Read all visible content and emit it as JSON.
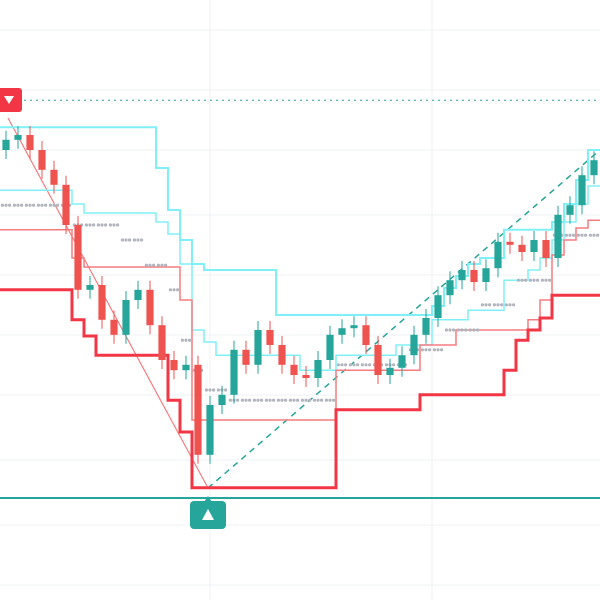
{
  "chart_data": {
    "type": "candlestick",
    "ylim": [
      0,
      100
    ],
    "up_color": "#26a69a",
    "down_color": "#ef5350",
    "open": [
      75,
      76.7,
      77.5,
      75,
      71.7,
      69.2,
      62.5,
      51.7,
      52.5,
      46.7,
      44.2,
      50,
      51.7,
      45.8,
      40,
      38.3,
      39.2,
      24.2,
      32.5,
      34.2,
      41.7,
      39.2,
      45,
      42.5,
      39.2,
      37.5,
      37,
      40,
      44.2,
      45.3,
      45.8,
      42.5,
      37.5,
      38.7,
      40.8,
      44.2,
      47,
      50.8,
      53.3,
      55,
      53,
      55.3,
      59.7,
      59.2,
      58,
      60,
      57,
      64.2,
      65.8,
      70.8
    ],
    "high": [
      78.2,
      79,
      79,
      76.5,
      73.2,
      70.7,
      64,
      54,
      54,
      48.2,
      51.5,
      53.2,
      53.2,
      47.3,
      41.5,
      40.7,
      40.7,
      34,
      35.7,
      43.2,
      43.2,
      46.5,
      46.5,
      44,
      40.7,
      39,
      41.5,
      45.7,
      46.8,
      47.3,
      47.3,
      44,
      40.2,
      42.3,
      45.7,
      48.5,
      52.3,
      54.8,
      56.5,
      56.5,
      56.8,
      61.2,
      61.2,
      60.7,
      61.5,
      61.5,
      65.7,
      67.3,
      72.3,
      74.8
    ],
    "low": [
      73.5,
      75.2,
      73.5,
      70.2,
      67.7,
      61,
      50.2,
      50.2,
      45.2,
      42.7,
      42.7,
      48.5,
      44.3,
      38.5,
      36.8,
      36.8,
      22.7,
      22.7,
      31,
      32.7,
      37.7,
      37.7,
      41,
      37.7,
      36,
      35.5,
      35.5,
      38.5,
      42.7,
      43.8,
      41,
      36,
      36,
      37.2,
      39.3,
      42.7,
      45.5,
      49.3,
      51.8,
      51.5,
      51.5,
      53.8,
      57.7,
      56.5,
      56.5,
      55.5,
      55.5,
      62.7,
      64.3,
      69.3
    ],
    "close": [
      76.7,
      77.5,
      75,
      71.7,
      69.2,
      62.5,
      51.7,
      52.5,
      46.7,
      44.2,
      50,
      51.7,
      45.8,
      40,
      38.3,
      39.2,
      24.2,
      32.5,
      34.2,
      41.7,
      39.2,
      45,
      42.5,
      39.2,
      37.5,
      37,
      40,
      44.2,
      45.3,
      45.8,
      42.5,
      37.5,
      38.7,
      40.8,
      44.2,
      47,
      50.8,
      53.3,
      55,
      53,
      55.3,
      59.7,
      59.2,
      58,
      60,
      57,
      64.2,
      65.8,
      70.8,
      73.3
    ],
    "overlays": [
      {
        "color": "#7ff0f7",
        "line_width": 2,
        "values": [
          78.8,
          78.8,
          78.8,
          78.8,
          78.8,
          78.8,
          78.8,
          78.8,
          78.8,
          78.8,
          78.8,
          78.8,
          78.8,
          72,
          65,
          60,
          56,
          55,
          55,
          55,
          55,
          55,
          55,
          47.5,
          47.5,
          47.5,
          47.5,
          47.5,
          47.5,
          47.5,
          47.5,
          47.5,
          47.5,
          47.5,
          47.5,
          47.5,
          49,
          52,
          54,
          56,
          57,
          57,
          61.7,
          61.7,
          61.7,
          61.7,
          63,
          66,
          70,
          75
        ]
      },
      {
        "color": "#7ff0f7",
        "line_width": 1.5,
        "values": [
          68.3,
          68.3,
          68.3,
          68.3,
          68.3,
          68.3,
          66,
          64.5,
          64.5,
          64.5,
          64.5,
          64.5,
          64.5,
          63,
          61,
          56,
          45,
          43,
          40.8,
          40.8,
          40.8,
          40.8,
          40.8,
          40.8,
          40.8,
          38.3,
          38.3,
          38.3,
          40.8,
          40.8,
          40.8,
          40.8,
          40.8,
          42.5,
          42.5,
          42.5,
          46.7,
          46.7,
          46.7,
          48.3,
          48.3,
          48.3,
          53.3,
          53.3,
          55,
          57,
          60,
          63,
          66,
          69
        ]
      },
      {
        "color": "#f77c80",
        "line_width": 1.5,
        "values": [
          61.7,
          61.7,
          61.7,
          61.7,
          61.7,
          61.7,
          57,
          55.5,
          55.5,
          55.5,
          55.5,
          55.5,
          55.5,
          55.5,
          55.5,
          50,
          30,
          30,
          30,
          30,
          30,
          30,
          30,
          30,
          30,
          30,
          30,
          30,
          38.3,
          38.3,
          38.3,
          38.3,
          38.3,
          38.3,
          38.3,
          42.5,
          42.5,
          42.5,
          45,
          45,
          45,
          45,
          45,
          45,
          46.7,
          50,
          57.5,
          60,
          62,
          63.3
        ]
      },
      {
        "color": "#f23645",
        "line_width": 3,
        "values": [
          51.7,
          51.7,
          51.7,
          51.7,
          51.7,
          51.7,
          46.7,
          44,
          40.8,
          40.8,
          40.8,
          40.8,
          40.8,
          40.8,
          33.3,
          28,
          18.7,
          18.7,
          18.7,
          18.7,
          18.7,
          18.7,
          18.7,
          18.7,
          18.7,
          18.7,
          18.7,
          18.7,
          31.7,
          31.7,
          31.7,
          31.7,
          31.7,
          31.7,
          31.7,
          34.2,
          34.2,
          34.2,
          34.2,
          34.2,
          34.2,
          34.2,
          38.3,
          43.3,
          45,
          47,
          50.8,
          50.8,
          50.8,
          50.8
        ]
      }
    ],
    "dots": {
      "color": "#b2b5be",
      "values": [
        65.8,
        65.8,
        65.8,
        65.8,
        65.8,
        65.8,
        62.5,
        62.5,
        62.5,
        62.5,
        60,
        60,
        55.8,
        55.8,
        51.7,
        43.3,
        38.3,
        35,
        35,
        33.3,
        33.3,
        33.3,
        33.3,
        33.3,
        33.3,
        33.3,
        33.3,
        33.3,
        39.2,
        39.2,
        39.2,
        39.2,
        39.2,
        39.2,
        41.7,
        41.7,
        41.7,
        45,
        45,
        45,
        49.2,
        49.2,
        49.2,
        53.3,
        53.3,
        53.3,
        60.8,
        60.8,
        60.8,
        60.8
      ]
    },
    "levels": [
      {
        "value": 83.3,
        "color": "#26a69a",
        "dash": true
      },
      {
        "value": 17,
        "color": "#26a69a",
        "dash": false
      }
    ]
  }
}
